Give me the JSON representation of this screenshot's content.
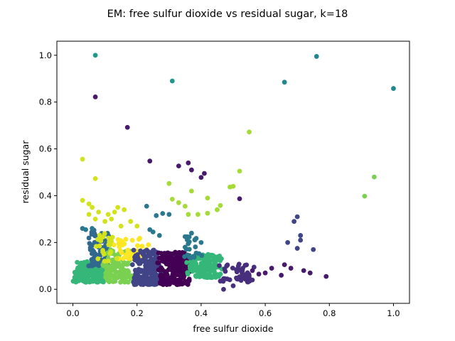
{
  "chart_data": {
    "type": "scatter",
    "title": "EM: free sulfur dioxide vs residual sugar, k=18",
    "xlabel": "free sulfur dioxide",
    "ylabel": "residual sugar",
    "xlim": [
      -0.05,
      1.05
    ],
    "ylim": [
      -0.06,
      1.06
    ],
    "xticks": [
      "0.0",
      "0.2",
      "0.4",
      "0.6",
      "0.8",
      "1.0"
    ],
    "yticks": [
      "0.0",
      "0.2",
      "0.4",
      "0.6",
      "0.8",
      "1.0"
    ],
    "grid": false,
    "legend": "none",
    "colors": [
      "#440154",
      "#481a6c",
      "#472f7d",
      "#414487",
      "#39568c",
      "#31688e",
      "#2a788e",
      "#23888e",
      "#1f988b",
      "#22a884",
      "#35b779",
      "#54c568",
      "#7ad151",
      "#a5db36",
      "#d2e21b",
      "#fde725"
    ],
    "outliers": [
      {
        "x": 0.07,
        "y": 1.0,
        "c": 8
      },
      {
        "x": 0.31,
        "y": 0.89,
        "c": 8
      },
      {
        "x": 0.76,
        "y": 0.995,
        "c": 7
      },
      {
        "x": 0.66,
        "y": 0.885,
        "c": 7
      },
      {
        "x": 1.0,
        "y": 0.858,
        "c": 7
      },
      {
        "x": 0.07,
        "y": 0.822,
        "c": 1
      },
      {
        "x": 0.17,
        "y": 0.692,
        "c": 1
      },
      {
        "x": 0.55,
        "y": 0.672,
        "c": 13
      },
      {
        "x": 0.03,
        "y": 0.556,
        "c": 14
      },
      {
        "x": 0.24,
        "y": 0.548,
        "c": 1
      },
      {
        "x": 0.36,
        "y": 0.54,
        "c": 1
      },
      {
        "x": 0.33,
        "y": 0.527,
        "c": 1
      },
      {
        "x": 0.37,
        "y": 0.51,
        "c": 1
      },
      {
        "x": 0.41,
        "y": 0.495,
        "c": 1
      },
      {
        "x": 0.52,
        "y": 0.505,
        "c": 13
      },
      {
        "x": 0.4,
        "y": 0.478,
        "c": 1
      },
      {
        "x": 0.94,
        "y": 0.48,
        "c": 12
      },
      {
        "x": 0.07,
        "y": 0.473,
        "c": 14
      },
      {
        "x": 0.3,
        "y": 0.452,
        "c": 13
      },
      {
        "x": 0.49,
        "y": 0.437,
        "c": 13
      },
      {
        "x": 0.5,
        "y": 0.44,
        "c": 13
      },
      {
        "x": 0.37,
        "y": 0.42,
        "c": 13
      },
      {
        "x": 0.91,
        "y": 0.398,
        "c": 12
      },
      {
        "x": 0.42,
        "y": 0.39,
        "c": 13
      },
      {
        "x": 0.52,
        "y": 0.387,
        "c": 1
      },
      {
        "x": 0.46,
        "y": 0.358,
        "c": 13
      },
      {
        "x": 0.23,
        "y": 0.355,
        "c": 6
      },
      {
        "x": 0.31,
        "y": 0.385,
        "c": 13
      },
      {
        "x": 0.33,
        "y": 0.37,
        "c": 13
      },
      {
        "x": 0.35,
        "y": 0.355,
        "c": 13
      },
      {
        "x": 0.45,
        "y": 0.34,
        "c": 13
      },
      {
        "x": 0.36,
        "y": 0.32,
        "c": 13
      },
      {
        "x": 0.39,
        "y": 0.32,
        "c": 13
      },
      {
        "x": 0.42,
        "y": 0.325,
        "c": 13
      },
      {
        "x": 0.3,
        "y": 0.32,
        "c": 6
      },
      {
        "x": 0.28,
        "y": 0.324,
        "c": 6
      },
      {
        "x": 0.26,
        "y": 0.315,
        "c": 6
      },
      {
        "x": 0.7,
        "y": 0.31,
        "c": 3
      },
      {
        "x": 0.69,
        "y": 0.29,
        "c": 3
      },
      {
        "x": 0.24,
        "y": 0.255,
        "c": 6
      },
      {
        "x": 0.25,
        "y": 0.245,
        "c": 6
      },
      {
        "x": 0.27,
        "y": 0.23,
        "c": 6
      },
      {
        "x": 0.71,
        "y": 0.23,
        "c": 3
      },
      {
        "x": 0.71,
        "y": 0.21,
        "c": 3
      },
      {
        "x": 0.67,
        "y": 0.2,
        "c": 3
      },
      {
        "x": 0.75,
        "y": 0.17,
        "c": 3
      },
      {
        "x": 0.7,
        "y": 0.175,
        "c": 3
      },
      {
        "x": 0.37,
        "y": 0.24,
        "c": 6
      },
      {
        "x": 0.35,
        "y": 0.225,
        "c": 6
      },
      {
        "x": 0.35,
        "y": 0.18,
        "c": 6
      },
      {
        "x": 0.4,
        "y": 0.2,
        "c": 6
      },
      {
        "x": 0.66,
        "y": 0.105,
        "c": 1
      },
      {
        "x": 0.68,
        "y": 0.09,
        "c": 1
      },
      {
        "x": 0.72,
        "y": 0.08,
        "c": 1
      },
      {
        "x": 0.74,
        "y": 0.07,
        "c": 1
      },
      {
        "x": 0.79,
        "y": 0.055,
        "c": 1
      },
      {
        "x": 0.62,
        "y": 0.09,
        "c": 1
      },
      {
        "x": 0.6,
        "y": 0.07,
        "c": 1
      },
      {
        "x": 0.53,
        "y": 0.09,
        "c": 2
      },
      {
        "x": 0.47,
        "y": 0.0,
        "c": 2
      },
      {
        "x": 0.5,
        "y": 0.015,
        "c": 2
      },
      {
        "x": 0.46,
        "y": 0.035,
        "c": 2
      },
      {
        "x": 0.56,
        "y": 0.08,
        "c": 1
      },
      {
        "x": 0.58,
        "y": 0.065,
        "c": 1
      },
      {
        "x": 0.65,
        "y": 0.06,
        "c": 1
      },
      {
        "x": 0.12,
        "y": 0.095,
        "c": 12
      },
      {
        "x": 0.04,
        "y": 0.255,
        "c": 6
      },
      {
        "x": 0.03,
        "y": 0.26,
        "c": 6
      },
      {
        "x": 0.06,
        "y": 0.26,
        "c": 6
      },
      {
        "x": 0.05,
        "y": 0.32,
        "c": 14
      },
      {
        "x": 0.03,
        "y": 0.38,
        "c": 14
      },
      {
        "x": 0.08,
        "y": 0.33,
        "c": 14
      },
      {
        "x": 0.12,
        "y": 0.3,
        "c": 14
      },
      {
        "x": 0.14,
        "y": 0.35,
        "c": 14
      },
      {
        "x": 0.13,
        "y": 0.33,
        "c": 14
      },
      {
        "x": 0.16,
        "y": 0.34,
        "c": 14
      },
      {
        "x": 0.1,
        "y": 0.29,
        "c": 14
      },
      {
        "x": 0.18,
        "y": 0.29,
        "c": 14
      },
      {
        "x": 0.05,
        "y": 0.365,
        "c": 14
      },
      {
        "x": 0.06,
        "y": 0.35,
        "c": 14
      },
      {
        "x": 0.11,
        "y": 0.32,
        "c": 14
      },
      {
        "x": 0.2,
        "y": 0.27,
        "c": 14
      },
      {
        "x": 0.07,
        "y": 0.3,
        "c": 14
      },
      {
        "x": 0.15,
        "y": 0.27,
        "c": 14
      }
    ],
    "clusters": [
      {
        "c": 10,
        "n": 160,
        "x": [
          0.0,
          0.11
        ],
        "y": [
          0.03,
          0.12
        ]
      },
      {
        "c": 10,
        "n": 40,
        "x": [
          0.0,
          0.05
        ],
        "y": [
          0.04,
          0.09
        ]
      },
      {
        "c": 5,
        "n": 70,
        "x": [
          0.04,
          0.12
        ],
        "y": [
          0.1,
          0.26
        ]
      },
      {
        "c": 12,
        "n": 130,
        "x": [
          0.09,
          0.19
        ],
        "y": [
          0.03,
          0.17
        ]
      },
      {
        "c": 15,
        "n": 45,
        "x": [
          0.12,
          0.24
        ],
        "y": [
          0.13,
          0.22
        ]
      },
      {
        "c": 14,
        "n": 25,
        "x": [
          0.06,
          0.14
        ],
        "y": [
          0.12,
          0.24
        ]
      },
      {
        "c": 3,
        "n": 170,
        "x": [
          0.18,
          0.28
        ],
        "y": [
          0.02,
          0.17
        ]
      },
      {
        "c": 0,
        "n": 190,
        "x": [
          0.26,
          0.37
        ],
        "y": [
          0.02,
          0.16
        ]
      },
      {
        "c": 10,
        "n": 160,
        "x": [
          0.35,
          0.47
        ],
        "y": [
          0.05,
          0.15
        ]
      },
      {
        "c": 2,
        "n": 45,
        "x": [
          0.45,
          0.58
        ],
        "y": [
          0.03,
          0.11
        ]
      },
      {
        "c": 6,
        "n": 20,
        "x": [
          0.34,
          0.41
        ],
        "y": [
          0.13,
          0.23
        ]
      }
    ]
  }
}
